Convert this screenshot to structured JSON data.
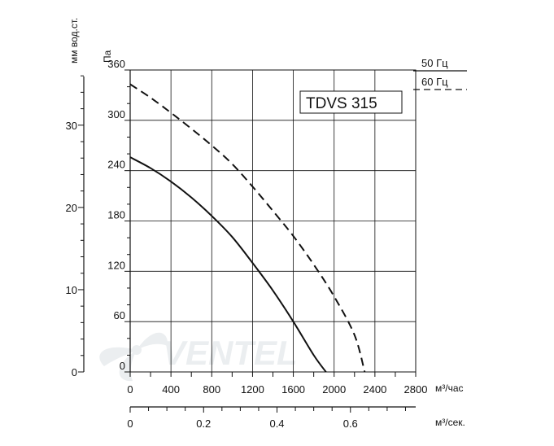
{
  "chart_data": {
    "type": "line",
    "title": "TDVS 315",
    "xlabel": "м³/час",
    "xlabel2": "м³/сек.",
    "ylabel": "Па",
    "ylabel2": "мм вод.ст.",
    "xlim": [
      0,
      2800
    ],
    "ylim": [
      0,
      360
    ],
    "x_ticks": [
      0,
      400,
      800,
      1200,
      1600,
      2000,
      2400,
      2800
    ],
    "y_ticks": [
      0,
      60,
      120,
      180,
      240,
      300,
      360
    ],
    "y2_ticks": [
      0,
      10,
      20,
      30
    ],
    "x2_ticks": [
      0,
      0.2,
      0.4,
      0.6
    ],
    "x2_tick_labels": [
      "0",
      "0.2",
      "0.4",
      "0.6"
    ],
    "grid": true,
    "legend_position": "top-right",
    "series": [
      {
        "name": "50 Гц",
        "style": "solid",
        "x": [
          0,
          200,
          400,
          600,
          800,
          1000,
          1200,
          1400,
          1600,
          1800,
          1920
        ],
        "y": [
          256,
          243,
          227,
          208,
          186,
          161,
          130,
          97,
          60,
          20,
          0
        ]
      },
      {
        "name": "60 Гц",
        "style": "dashed",
        "x": [
          0,
          200,
          400,
          600,
          800,
          1000,
          1200,
          1400,
          1600,
          1800,
          2000,
          2200,
          2300
        ],
        "y": [
          343,
          327,
          309,
          290,
          270,
          248,
          221,
          192,
          162,
          128,
          90,
          44,
          0
        ]
      }
    ]
  },
  "watermark": "VENTEL"
}
